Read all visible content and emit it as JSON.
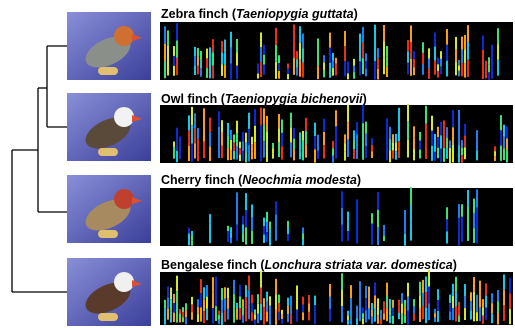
{
  "species": [
    {
      "name": "Zebra finch (",
      "latin": "Taeniopygia guttata",
      "close": ")"
    },
    {
      "name": "Owl finch (",
      "latin": "Taeniopygia bichenovii",
      "close": ")"
    },
    {
      "name": "Cherry finch (",
      "latin": "Neochmia modesta",
      "close": ")"
    },
    {
      "name": "Bengalese finch (",
      "latin": "Lonchura striata var. domestica",
      "close": ")"
    }
  ]
}
